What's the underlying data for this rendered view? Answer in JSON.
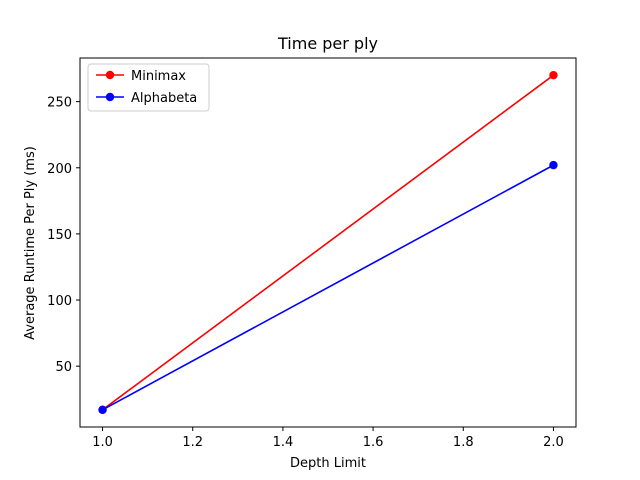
{
  "chart_data": {
    "type": "line",
    "title": "Time per ply",
    "xlabel": "Depth Limit",
    "ylabel": "Average Runtime Per Ply (ms)",
    "xlim": [
      0.95,
      2.05
    ],
    "ylim": [
      4,
      283
    ],
    "xticks": [
      1.0,
      1.2,
      1.4,
      1.6,
      1.8,
      2.0
    ],
    "xtick_labels": [
      "1.0",
      "1.2",
      "1.4",
      "1.6",
      "1.8",
      "2.0"
    ],
    "yticks": [
      50,
      100,
      150,
      200,
      250
    ],
    "ytick_labels": [
      "50",
      "100",
      "150",
      "200",
      "250"
    ],
    "grid": false,
    "legend_position": "upper-left",
    "series": [
      {
        "name": "Minimax",
        "color": "#ff0000",
        "marker": "circle",
        "x": [
          1.0,
          2.0
        ],
        "y": [
          17,
          270
        ]
      },
      {
        "name": "Alphabeta",
        "color": "#0000ff",
        "marker": "circle",
        "x": [
          1.0,
          2.0
        ],
        "y": [
          17,
          202
        ]
      }
    ]
  }
}
